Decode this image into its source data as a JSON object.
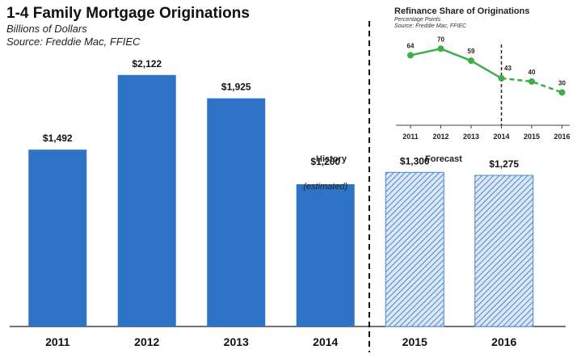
{
  "chart_data": [
    {
      "type": "bar",
      "title": "1-4 Family Mortgage Originations",
      "subtitle": "Billions of Dollars",
      "source": "Source: Freddie Mac, FFIEC",
      "categories": [
        "2011",
        "2012",
        "2013",
        "2014",
        "2015",
        "2016"
      ],
      "values": [
        1492,
        2122,
        1925,
        1200,
        1300,
        1275
      ],
      "value_labels": [
        "$1,492",
        "$2,122",
        "$1,925",
        "$1,200",
        "$1,300",
        "$1,275"
      ],
      "forecast": [
        false,
        false,
        false,
        false,
        true,
        true
      ],
      "annotations": {
        "estimated": "(estimated)",
        "history": "History",
        "forecast": "Forecast"
      },
      "ylim": [
        0,
        2400
      ],
      "colors": {
        "actual": "#2f73c7",
        "forecast_fill": "#dbe7f5",
        "forecast_hatch": "#4b86cf",
        "divider": "#111111"
      }
    },
    {
      "type": "line",
      "title": "Refinance  Share of Originations",
      "subtitle": "Percentage Points",
      "source": "Source: Freddie Mac, FFIEC",
      "x": [
        "2011",
        "2012",
        "2013",
        "2014",
        "2015",
        "2016"
      ],
      "values": [
        64,
        70,
        59,
        43,
        40,
        30
      ],
      "value_labels": [
        "64",
        "70",
        "59",
        "43",
        "40",
        "30"
      ],
      "forecast_from_index": 3,
      "ylim": [
        0,
        85
      ],
      "colors": {
        "line": "#3fae49",
        "point": "#3fae49"
      }
    }
  ]
}
